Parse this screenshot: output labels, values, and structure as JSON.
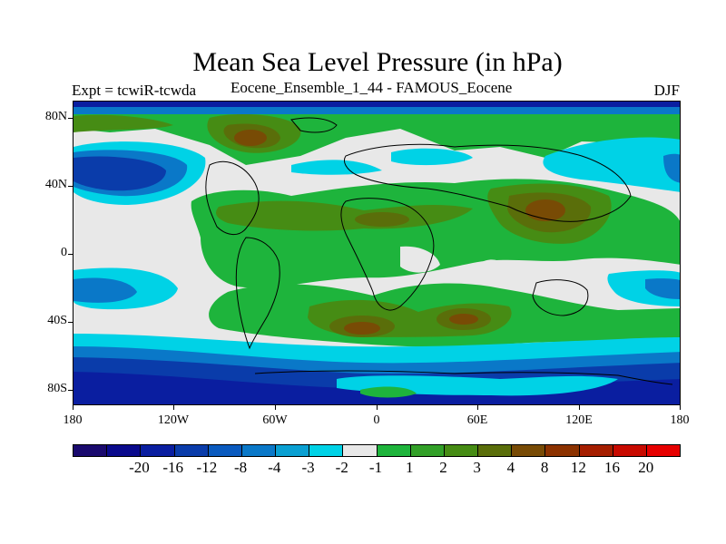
{
  "title": "Mean Sea Level Pressure (in hPa)",
  "subtitle_left": "Expt = tcwiR-tcwda",
  "subtitle_center": "Eocene_Ensemble_1_44 - FAMOUS_Eocene",
  "subtitle_right": "DJF",
  "y_labels": [
    "80N",
    "40N",
    "0",
    "40S",
    "80S"
  ],
  "x_labels": [
    "180",
    "120W",
    "60W",
    "0",
    "60E",
    "120E",
    "180"
  ],
  "colorbar": {
    "colors": [
      "#1a0a6e",
      "#0a0a8c",
      "#0a1ea0",
      "#0a3caa",
      "#0a5abe",
      "#0a78c8",
      "#0aa0d2",
      "#00d2e6",
      "#e8e8e8",
      "#1eb43c",
      "#32a028",
      "#468c14",
      "#5a6e0a",
      "#784b05",
      "#8c3200",
      "#a51e00",
      "#c80a00",
      "#e60000"
    ],
    "labels": [
      "-20",
      "-16",
      "-12",
      "-8",
      "-4",
      "-3",
      "-2",
      "-1",
      "1",
      "2",
      "3",
      "4",
      "8",
      "12",
      "16",
      "20"
    ]
  },
  "palette": {
    "deep_blue": "#0a1ea0",
    "blue": "#0a3caa",
    "mid_blue": "#0a5abe",
    "light_blue": "#0a78c8",
    "cyan": "#00d2e6",
    "neutral": "#e8e8e8",
    "green": "#1eb43c",
    "mid_green": "#32a028",
    "olive": "#468c14",
    "dark_olive": "#5a6e0a",
    "brown": "#784b05"
  }
}
